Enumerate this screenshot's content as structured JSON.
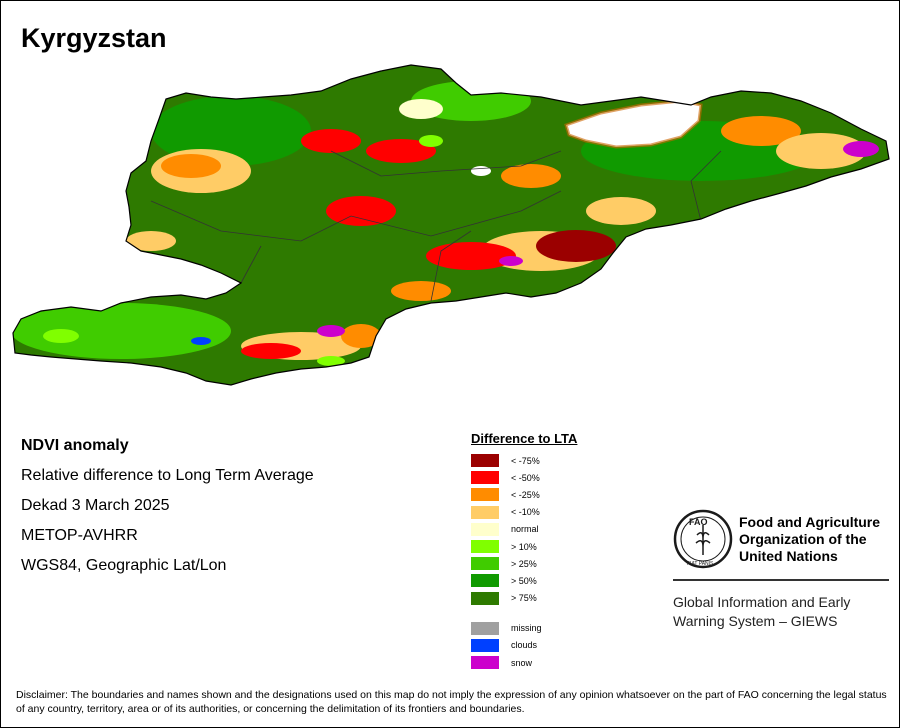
{
  "title": "Kyrgyzstan",
  "info": {
    "heading": "NDVI anomaly",
    "lines": [
      "Relative difference to Long Term Average",
      "Dekad 3 March 2025",
      "METOP-AVHRR",
      "WGS84, Geographic Lat/Lon"
    ]
  },
  "legend": {
    "title": "Difference to LTA",
    "classes": [
      {
        "label": "< -75%",
        "color": "#9b0000"
      },
      {
        "label": "< -50%",
        "color": "#ff0000"
      },
      {
        "label": "< -25%",
        "color": "#ff8c00"
      },
      {
        "label": "< -10%",
        "color": "#ffcc66"
      },
      {
        "label": "normal",
        "color": "#ffffcc"
      },
      {
        "label": "> 10%",
        "color": "#80ff00"
      },
      {
        "label": "> 25%",
        "color": "#40cc00"
      },
      {
        "label": "> 50%",
        "color": "#109a00"
      },
      {
        "label": "> 75%",
        "color": "#2e7a00"
      }
    ],
    "other": [
      {
        "label": "missing",
        "color": "#a0a0a0"
      },
      {
        "label": "clouds",
        "color": "#0040ff"
      },
      {
        "label": "snow",
        "color": "#cc00cc"
      }
    ]
  },
  "fao": {
    "org_lines": [
      "Food and Agriculture",
      "Organization of the",
      "United Nations"
    ],
    "emblem_text": "FAO",
    "emblem_motto": "FIAT PANIS",
    "giews_lines": [
      "Global Information and Early",
      "Warning System – GIEWS"
    ]
  },
  "disclaimer": "Disclaimer: The boundaries and names shown and the designations used on this map do not imply the expression of any opinion whatsoever on the part of FAO concerning the legal status of any country, territory, area or of its authorities, or concerning the delimitation of its frontiers and boundaries."
}
